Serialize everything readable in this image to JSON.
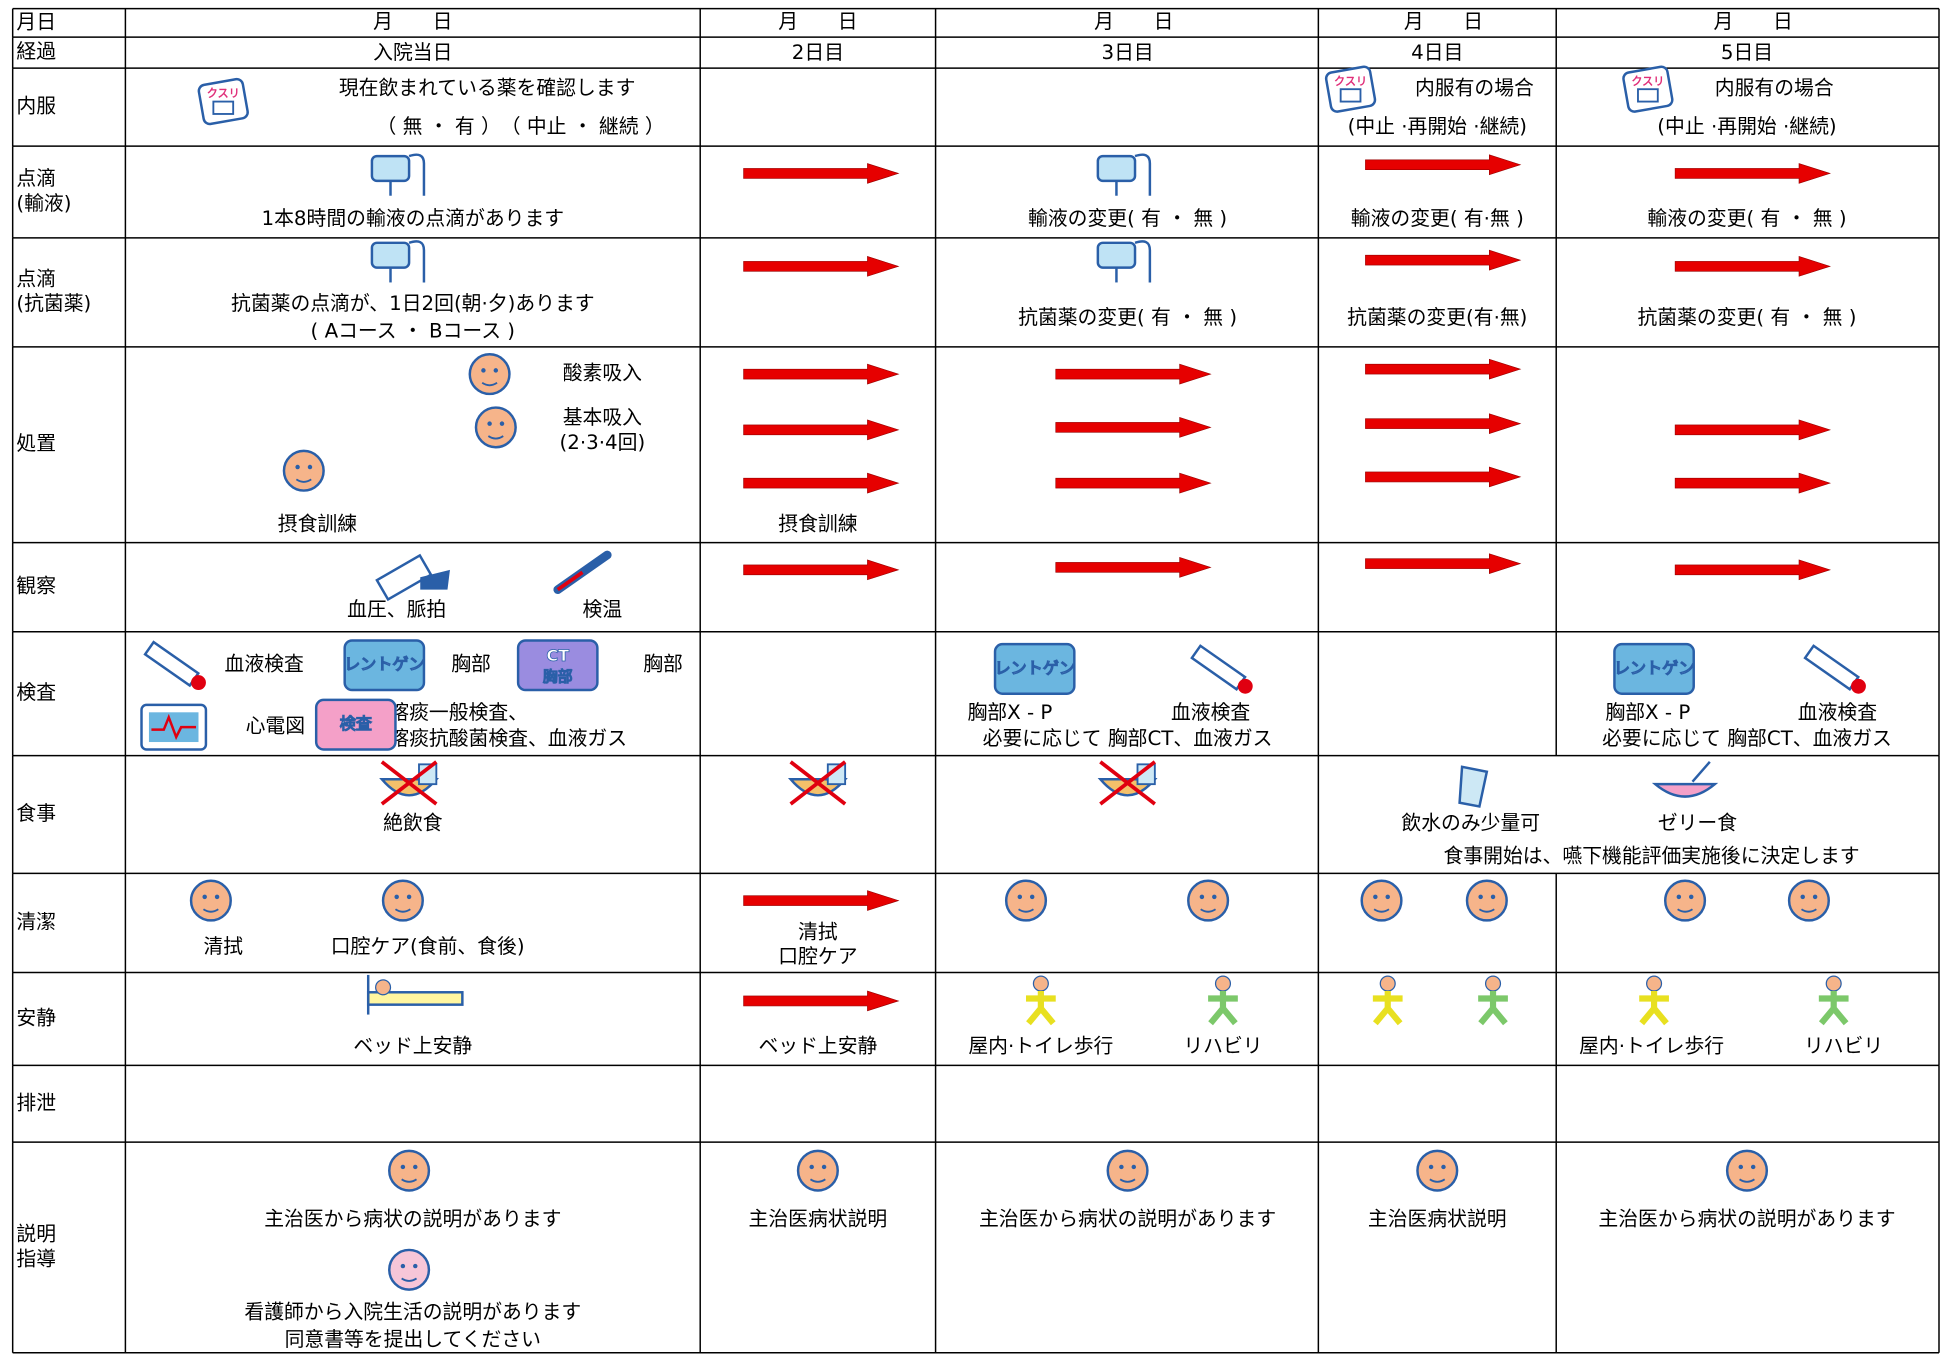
{
  "icons": {
    "kusuri": "クスリ",
    "xray": "レントゲン",
    "ct": "CT",
    "ct_part": "胸部",
    "exam": "検査"
  },
  "table": {
    "rows": [
      {
        "label": [
          "月日"
        ],
        "cells": [
          [
            "月　　日"
          ],
          [
            "月　　日"
          ],
          [
            "月　　日"
          ],
          [
            "月　　日"
          ],
          [
            "月　　日"
          ]
        ]
      },
      {
        "label": [
          "経過"
        ],
        "cells": [
          [
            "入院当日"
          ],
          [
            "2日目"
          ],
          [
            "3日目"
          ],
          [
            "4日目"
          ],
          [
            "5日目"
          ]
        ]
      },
      {
        "label": [
          "内服"
        ],
        "cells": [
          [
            "現在飲まれている薬を確認します",
            "（ 無 ・ 有 ）　（ 中止 ・ 継続 ）"
          ],
          [],
          [],
          [
            "内服有の場合",
            "(中止 ·再開始 ·継続)"
          ],
          [
            "内服有の場合",
            "(中止 ·再開始 ·継続)"
          ]
        ]
      },
      {
        "label": [
          "点滴",
          "(輸液)"
        ],
        "cells": [
          [
            "1本8時間の輸液の点滴があります"
          ],
          [],
          [
            "輸液の変更( 有 ・ 無 )"
          ],
          [
            "輸液の変更( 有·無 )"
          ],
          [
            "輸液の変更( 有 ・ 無 )"
          ]
        ]
      },
      {
        "label": [
          "点滴",
          "(抗菌薬)"
        ],
        "cells": [
          [
            "抗菌薬の点滴が、1日2回(朝·夕)あります",
            "( Aコース ・ Bコース )"
          ],
          [],
          [
            "抗菌薬の変更( 有 ・ 無 )"
          ],
          [
            "抗菌薬の変更(有·無)"
          ],
          [
            "抗菌薬の変更( 有 ・ 無 )"
          ]
        ]
      },
      {
        "label": [
          "処置"
        ],
        "cells": [
          [
            "酸素吸入",
            "基本吸入",
            "(2·3·4回)",
            "摂食訓練"
          ],
          [
            "摂食訓練"
          ],
          [],
          [],
          []
        ]
      },
      {
        "label": [
          "観察"
        ],
        "cells": [
          [
            "血圧、脈拍",
            "検温"
          ],
          [],
          [],
          [],
          []
        ]
      },
      {
        "label": [
          "検査"
        ],
        "cells": [
          [
            "血液検査",
            "胸部",
            "胸部",
            "心電図",
            "喀痰一般検査、",
            "喀痰抗酸菌検査、血液ガス"
          ],
          [],
          [
            "胸部X - P",
            "血液検査",
            "必要に応じて 胸部CT、血液ガス"
          ],
          [],
          [
            "胸部X - P",
            "血液検査",
            "必要に応じて 胸部CT、血液ガス"
          ]
        ]
      },
      {
        "label": [
          "食事"
        ],
        "cells": [
          [
            "絶飲食"
          ],
          [],
          [],
          [
            "飲水のみ少量可",
            "ゼリー食",
            "食事開始は、嚥下機能評価実施後に決定します"
          ]
        ]
      },
      {
        "label": [
          "清潔"
        ],
        "cells": [
          [
            "清拭",
            "口腔ケア(食前、食後)"
          ],
          [
            "清拭",
            "口腔ケア"
          ],
          [],
          [],
          []
        ]
      },
      {
        "label": [
          "安静"
        ],
        "cells": [
          [
            "ベッド上安静"
          ],
          [
            "ベッド上安静"
          ],
          [
            "屋内·トイレ歩行",
            "リハビリ"
          ],
          [],
          [
            "屋内·トイレ歩行",
            "リハビリ"
          ]
        ]
      },
      {
        "label": [
          "排泄"
        ],
        "cells": [
          [],
          [],
          [],
          [],
          []
        ]
      },
      {
        "label": [
          "説明",
          "指導"
        ],
        "cells": [
          [
            "主治医から病状の説明があります",
            "看護師から入院生活の説明があります",
            "同意書等を提出してください"
          ],
          [
            "主治医病状説明"
          ],
          [
            "主治医から病状の説明があります"
          ],
          [
            "主治医病状説明"
          ],
          [
            "主治医から病状の説明があります"
          ]
        ]
      }
    ]
  }
}
